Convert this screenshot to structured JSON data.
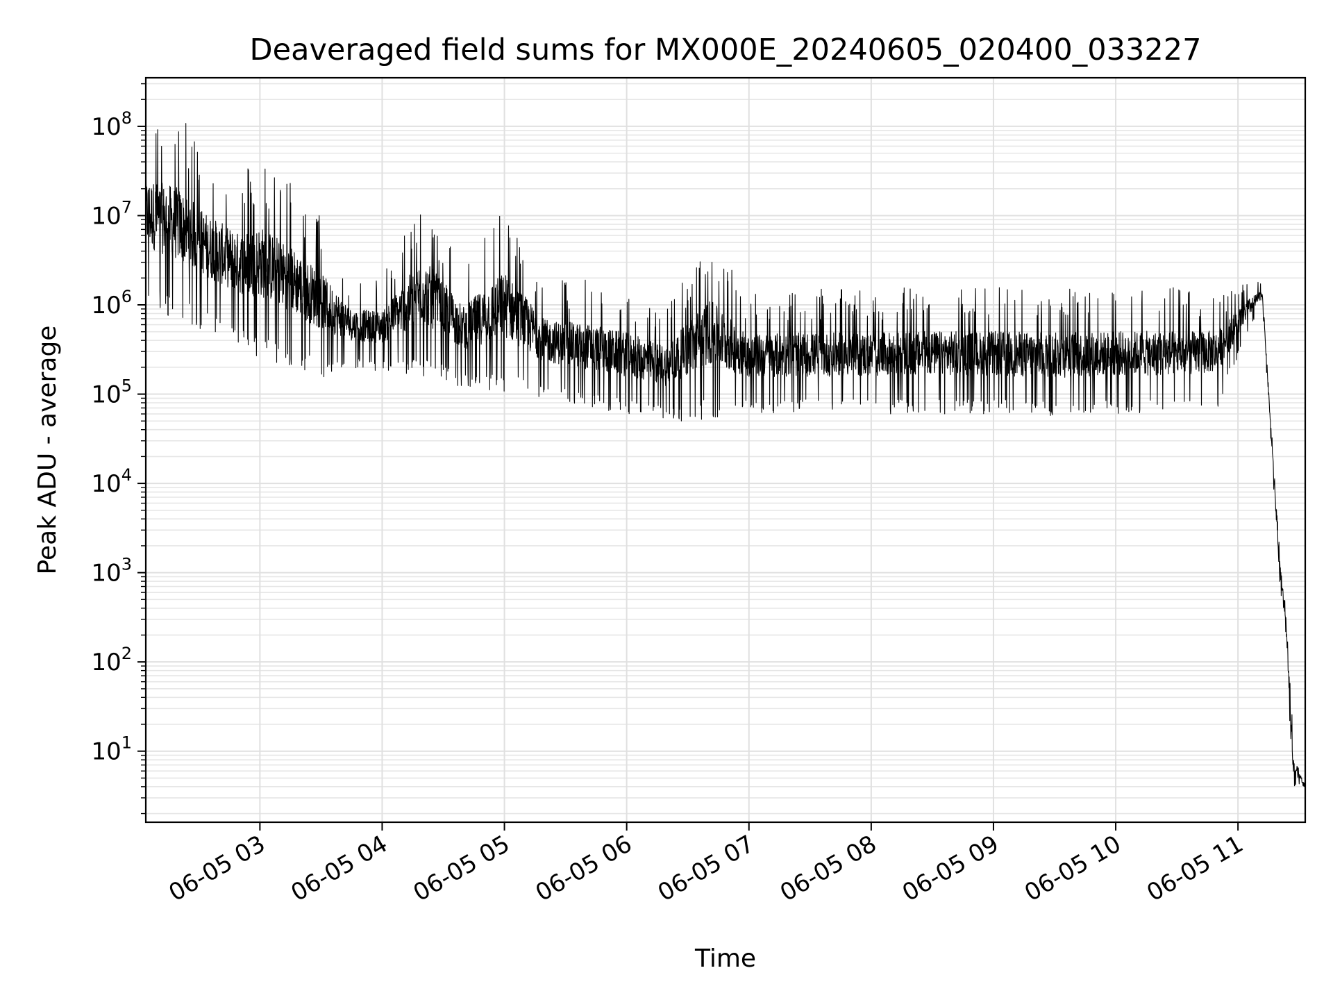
{
  "chart_data": {
    "type": "line",
    "title": "Deaveraged field sums for MX000E_20240605_020400_033227",
    "xlabel": "Time",
    "ylabel": "Peak ADU - average",
    "yscale": "log",
    "ylim": [
      1.6,
      350000000
    ],
    "xlim": [
      "2024-06-05 02:04",
      "2024-06-05 11:33"
    ],
    "grid": true,
    "line_color": "#000000",
    "x_ticks": [
      {
        "time": "2024-06-05 03:00",
        "label": "06-05 03"
      },
      {
        "time": "2024-06-05 04:00",
        "label": "06-05 04"
      },
      {
        "time": "2024-06-05 05:00",
        "label": "06-05 05"
      },
      {
        "time": "2024-06-05 06:00",
        "label": "06-05 06"
      },
      {
        "time": "2024-06-05 07:00",
        "label": "06-05 07"
      },
      {
        "time": "2024-06-05 08:00",
        "label": "06-05 08"
      },
      {
        "time": "2024-06-05 09:00",
        "label": "06-05 09"
      },
      {
        "time": "2024-06-05 10:00",
        "label": "06-05 10"
      },
      {
        "time": "2024-06-05 11:00",
        "label": "06-05 11"
      }
    ],
    "y_ticks": [
      {
        "value": 10,
        "base": "10",
        "exp": "1"
      },
      {
        "value": 100,
        "base": "10",
        "exp": "2"
      },
      {
        "value": 1000,
        "base": "10",
        "exp": "3"
      },
      {
        "value": 10000,
        "base": "10",
        "exp": "4"
      },
      {
        "value": 100000,
        "base": "10",
        "exp": "5"
      },
      {
        "value": 1000000,
        "base": "10",
        "exp": "6"
      },
      {
        "value": 10000000,
        "base": "10",
        "exp": "7"
      },
      {
        "value": 100000000,
        "base": "10",
        "exp": "8"
      }
    ],
    "series": [
      {
        "values_description_points": [
          [
            "2024-06-05 02:04",
            1000000,
            150000000
          ],
          [
            "2024-06-05 02:20",
            600000,
            140000000
          ],
          [
            "2024-06-05 02:35",
            500000,
            50000000
          ],
          [
            "2024-06-05 02:50",
            350000,
            30000000
          ],
          [
            "2024-06-05 03:00",
            250000,
            50000000
          ],
          [
            "2024-06-05 03:15",
            200000,
            25000000
          ],
          [
            "2024-06-05 03:30",
            150000,
            10000000
          ],
          [
            "2024-06-05 03:45",
            200000,
            2000000
          ],
          [
            "2024-06-05 04:00",
            180000,
            2000000
          ],
          [
            "2024-06-05 04:20",
            150000,
            18000000
          ],
          [
            "2024-06-05 04:40",
            120000,
            3000000
          ],
          [
            "2024-06-05 05:00",
            100000,
            13000000
          ],
          [
            "2024-06-05 05:20",
            90000,
            2000000
          ],
          [
            "2024-06-05 05:40",
            70000,
            2000000
          ],
          [
            "2024-06-05 06:00",
            60000,
            1500000
          ],
          [
            "2024-06-05 06:20",
            50000,
            1000000
          ],
          [
            "2024-06-05 06:40",
            50000,
            6500000
          ],
          [
            "2024-06-05 07:00",
            60000,
            1400000
          ],
          [
            "2024-06-05 07:20",
            60000,
            1500000
          ],
          [
            "2024-06-05 07:40",
            60000,
            1500000
          ],
          [
            "2024-06-05 08:00",
            60000,
            1500000
          ],
          [
            "2024-06-05 08:30",
            60000,
            1600000
          ],
          [
            "2024-06-05 09:00",
            60000,
            1600000
          ],
          [
            "2024-06-05 09:30",
            55000,
            1600000
          ],
          [
            "2024-06-05 10:00",
            60000,
            1600000
          ],
          [
            "2024-06-05 10:30",
            60000,
            1600000
          ],
          [
            "2024-06-05 10:50",
            70000,
            1500000
          ],
          [
            "2024-06-05 11:05",
            500000,
            1800000
          ],
          [
            "2024-06-05 11:12",
            1000000,
            1800000
          ],
          [
            "2024-06-05 11:20",
            1000,
            2500
          ],
          [
            "2024-06-05 11:24",
            100,
            400
          ],
          [
            "2024-06-05 11:27",
            4,
            15
          ],
          [
            "2024-06-05 11:33",
            4,
            4
          ]
        ]
      }
    ]
  }
}
